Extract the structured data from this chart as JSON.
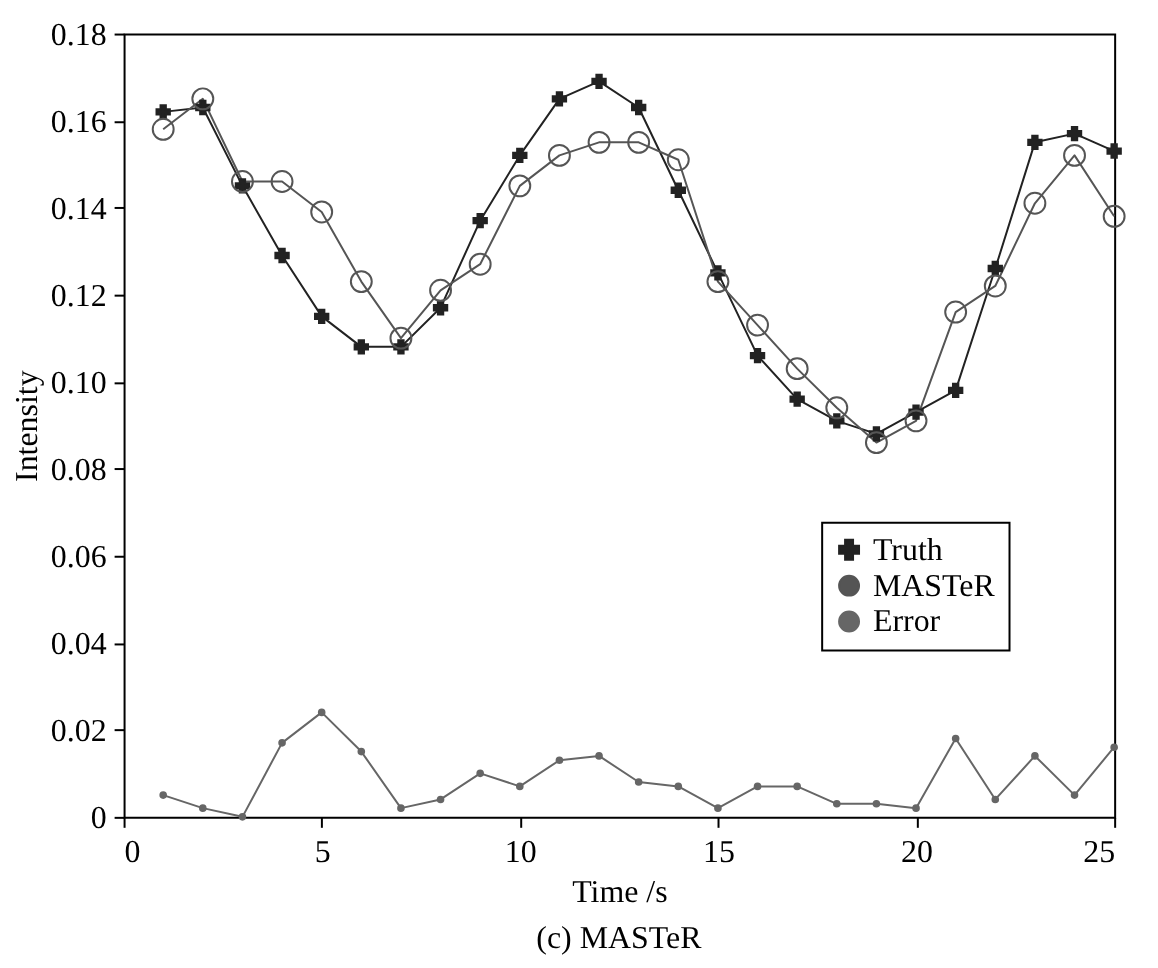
{
  "chart_data": {
    "type": "line",
    "xlabel": "Time /s",
    "ylabel": "Intensity",
    "annotations": [
      "(c) MASTeR"
    ],
    "x": [
      1,
      2,
      3,
      4,
      5,
      6,
      7,
      8,
      9,
      10,
      11,
      12,
      13,
      14,
      15,
      16,
      17,
      18,
      19,
      20,
      21,
      22,
      23,
      24,
      25
    ],
    "series": [
      {
        "name": "Truth",
        "color": "#222222",
        "marker": "cross",
        "values": [
          0.162,
          0.163,
          0.145,
          0.129,
          0.115,
          0.108,
          0.108,
          0.117,
          0.137,
          0.152,
          0.165,
          0.169,
          0.163,
          0.144,
          0.125,
          0.106,
          0.096,
          0.091,
          0.088,
          0.093,
          0.098,
          0.126,
          0.155,
          0.157,
          0.153
        ]
      },
      {
        "name": "MASTeR",
        "color": "#555555",
        "marker": "circle",
        "values": [
          0.158,
          0.165,
          0.146,
          0.146,
          0.139,
          0.123,
          0.11,
          0.121,
          0.127,
          0.145,
          0.152,
          0.155,
          0.155,
          0.151,
          0.123,
          0.113,
          0.103,
          0.094,
          0.086,
          0.091,
          0.116,
          0.122,
          0.141,
          0.152,
          0.138
        ]
      },
      {
        "name": "Error",
        "color": "#666666",
        "marker": "dot",
        "values": [
          0.005,
          0.002,
          0.0,
          0.017,
          0.024,
          0.015,
          0.002,
          0.004,
          0.01,
          0.007,
          0.013,
          0.014,
          0.008,
          0.007,
          0.002,
          0.007,
          0.007,
          0.003,
          0.003,
          0.002,
          0.018,
          0.004,
          0.014,
          0.005,
          0.016
        ]
      }
    ],
    "xlim": [
      0,
      25
    ],
    "xticks": [
      0,
      5,
      10,
      15,
      20,
      25
    ],
    "ylim": [
      0,
      0.18
    ],
    "yticks": [
      0,
      0.02,
      0.04,
      0.06,
      0.08,
      {
        "value": 0.1,
        "label": "0.10"
      },
      0.12,
      0.14,
      0.16,
      0.18
    ],
    "grid": false,
    "legend": "right",
    "line_style": "solid"
  }
}
